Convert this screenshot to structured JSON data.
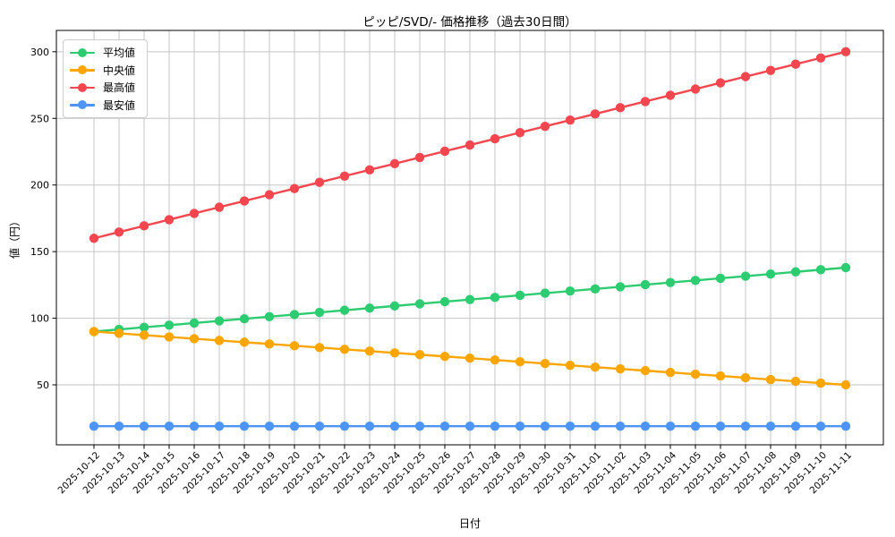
{
  "title": "ピッピ/SVD/- 価格推移（過去30日間）",
  "chart_data": {
    "type": "line",
    "title": "ピッピ/SVD/- 価格推移（過去30日間）",
    "xlabel": "日付",
    "ylabel": "値（円）",
    "ylim": [
      5,
      316
    ],
    "yticks": [
      50,
      100,
      150,
      200,
      250,
      300
    ],
    "grid": true,
    "legend_position": "upper-left",
    "grid_color": "#c6c6c6",
    "categories": [
      "2025-10-12",
      "2025-10-13",
      "2025-10-14",
      "2025-10-15",
      "2025-10-16",
      "2025-10-17",
      "2025-10-18",
      "2025-10-19",
      "2025-10-20",
      "2025-10-21",
      "2025-10-22",
      "2025-10-23",
      "2025-10-24",
      "2025-10-25",
      "2025-10-26",
      "2025-10-27",
      "2025-10-28",
      "2025-10-29",
      "2025-10-30",
      "2025-10-31",
      "2025-11-01",
      "2025-11-02",
      "2025-11-03",
      "2025-11-04",
      "2025-11-05",
      "2025-11-06",
      "2025-11-07",
      "2025-11-08",
      "2025-11-09",
      "2025-11-10",
      "2025-11-11"
    ],
    "series": [
      {
        "name": "平均値",
        "color": "#2ecc71",
        "values": [
          90,
          91.6,
          93.2,
          94.8,
          96.4,
          98,
          99.6,
          101.2,
          102.8,
          104.4,
          106,
          107.6,
          109.2,
          110.8,
          112.4,
          114,
          115.6,
          117.2,
          118.8,
          120.4,
          122,
          123.6,
          125.2,
          126.8,
          128.4,
          130,
          131.6,
          133.2,
          134.8,
          136.4,
          138
        ]
      },
      {
        "name": "中央値",
        "color": "#ffa500",
        "values": [
          90,
          88.67,
          87.33,
          86,
          84.67,
          83.33,
          82,
          80.67,
          79.33,
          78,
          76.67,
          75.33,
          74,
          72.67,
          71.33,
          70,
          68.67,
          67.33,
          66,
          64.67,
          63.33,
          62,
          60.67,
          59.33,
          58,
          56.67,
          55.33,
          54,
          52.67,
          51.33,
          50
        ]
      },
      {
        "name": "最高値",
        "color": "#f4464f",
        "values": [
          160,
          164.67,
          169.33,
          174,
          178.67,
          183.33,
          188,
          192.67,
          197.33,
          202,
          206.67,
          211.33,
          216,
          220.67,
          225.33,
          230,
          234.67,
          239.33,
          244,
          248.67,
          253.33,
          258,
          262.67,
          267.33,
          272,
          276.67,
          281.33,
          286,
          290.67,
          295.33,
          300
        ]
      },
      {
        "name": "最安値",
        "color": "#4d94f5",
        "values": [
          19,
          19,
          19,
          19,
          19,
          19,
          19,
          19,
          19,
          19,
          19,
          19,
          19,
          19,
          19,
          19,
          19,
          19,
          19,
          19,
          19,
          19,
          19,
          19,
          19,
          19,
          19,
          19,
          19,
          19,
          19
        ]
      }
    ]
  }
}
